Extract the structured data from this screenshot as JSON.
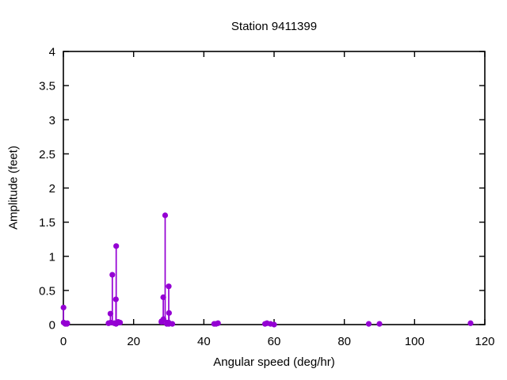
{
  "chart_data": {
    "type": "scatter",
    "style": "stem-impulses-with-points",
    "title": "Station 9411399",
    "xlabel": "Angular speed (deg/hr)",
    "ylabel": "Amplitude (feet)",
    "xlim": [
      0,
      120
    ],
    "ylim": [
      0,
      4
    ],
    "xtick_values": [
      0,
      20,
      40,
      60,
      80,
      100,
      120
    ],
    "xtick_labels": [
      "0",
      "20",
      "40",
      "60",
      "80",
      "100",
      "120"
    ],
    "ytick_values": [
      0,
      0.5,
      1,
      1.5,
      2,
      2.5,
      3,
      3.5,
      4
    ],
    "ytick_labels": [
      "0",
      "0.5",
      "1",
      "1.5",
      "2",
      "2.5",
      "3",
      "3.5",
      "4"
    ],
    "grid": false,
    "legend_position": "none",
    "marker": "filled-circle",
    "series_color": "#9400D3",
    "frame_color": "#000000",
    "points": [
      {
        "x": 0.04,
        "y": 0.25
      },
      {
        "x": 0.08,
        "y": 0.03
      },
      {
        "x": 0.54,
        "y": 0.01
      },
      {
        "x": 1.02,
        "y": 0.01
      },
      {
        "x": 1.1,
        "y": 0.02
      },
      {
        "x": 12.85,
        "y": 0.02
      },
      {
        "x": 13.4,
        "y": 0.16
      },
      {
        "x": 13.47,
        "y": 0.03
      },
      {
        "x": 13.94,
        "y": 0.73
      },
      {
        "x": 14.5,
        "y": 0.02
      },
      {
        "x": 14.96,
        "y": 0.37
      },
      {
        "x": 15.0,
        "y": 0.01
      },
      {
        "x": 15.04,
        "y": 1.15
      },
      {
        "x": 15.59,
        "y": 0.04
      },
      {
        "x": 16.14,
        "y": 0.03
      },
      {
        "x": 27.9,
        "y": 0.04
      },
      {
        "x": 27.97,
        "y": 0.05
      },
      {
        "x": 28.44,
        "y": 0.4
      },
      {
        "x": 28.51,
        "y": 0.08
      },
      {
        "x": 28.98,
        "y": 1.6
      },
      {
        "x": 29.46,
        "y": 0.01
      },
      {
        "x": 29.53,
        "y": 0.03
      },
      {
        "x": 29.96,
        "y": 0.03
      },
      {
        "x": 30.0,
        "y": 0.56
      },
      {
        "x": 30.04,
        "y": 0.01
      },
      {
        "x": 30.08,
        "y": 0.17
      },
      {
        "x": 31.02,
        "y": 0.01
      },
      {
        "x": 42.93,
        "y": 0.01
      },
      {
        "x": 43.48,
        "y": 0.01
      },
      {
        "x": 44.03,
        "y": 0.02
      },
      {
        "x": 57.42,
        "y": 0.01
      },
      {
        "x": 57.97,
        "y": 0.02
      },
      {
        "x": 58.98,
        "y": 0.01
      },
      {
        "x": 60.0,
        "y": 0.0
      },
      {
        "x": 86.95,
        "y": 0.01
      },
      {
        "x": 90.0,
        "y": 0.01
      },
      {
        "x": 115.94,
        "y": 0.02
      }
    ]
  }
}
